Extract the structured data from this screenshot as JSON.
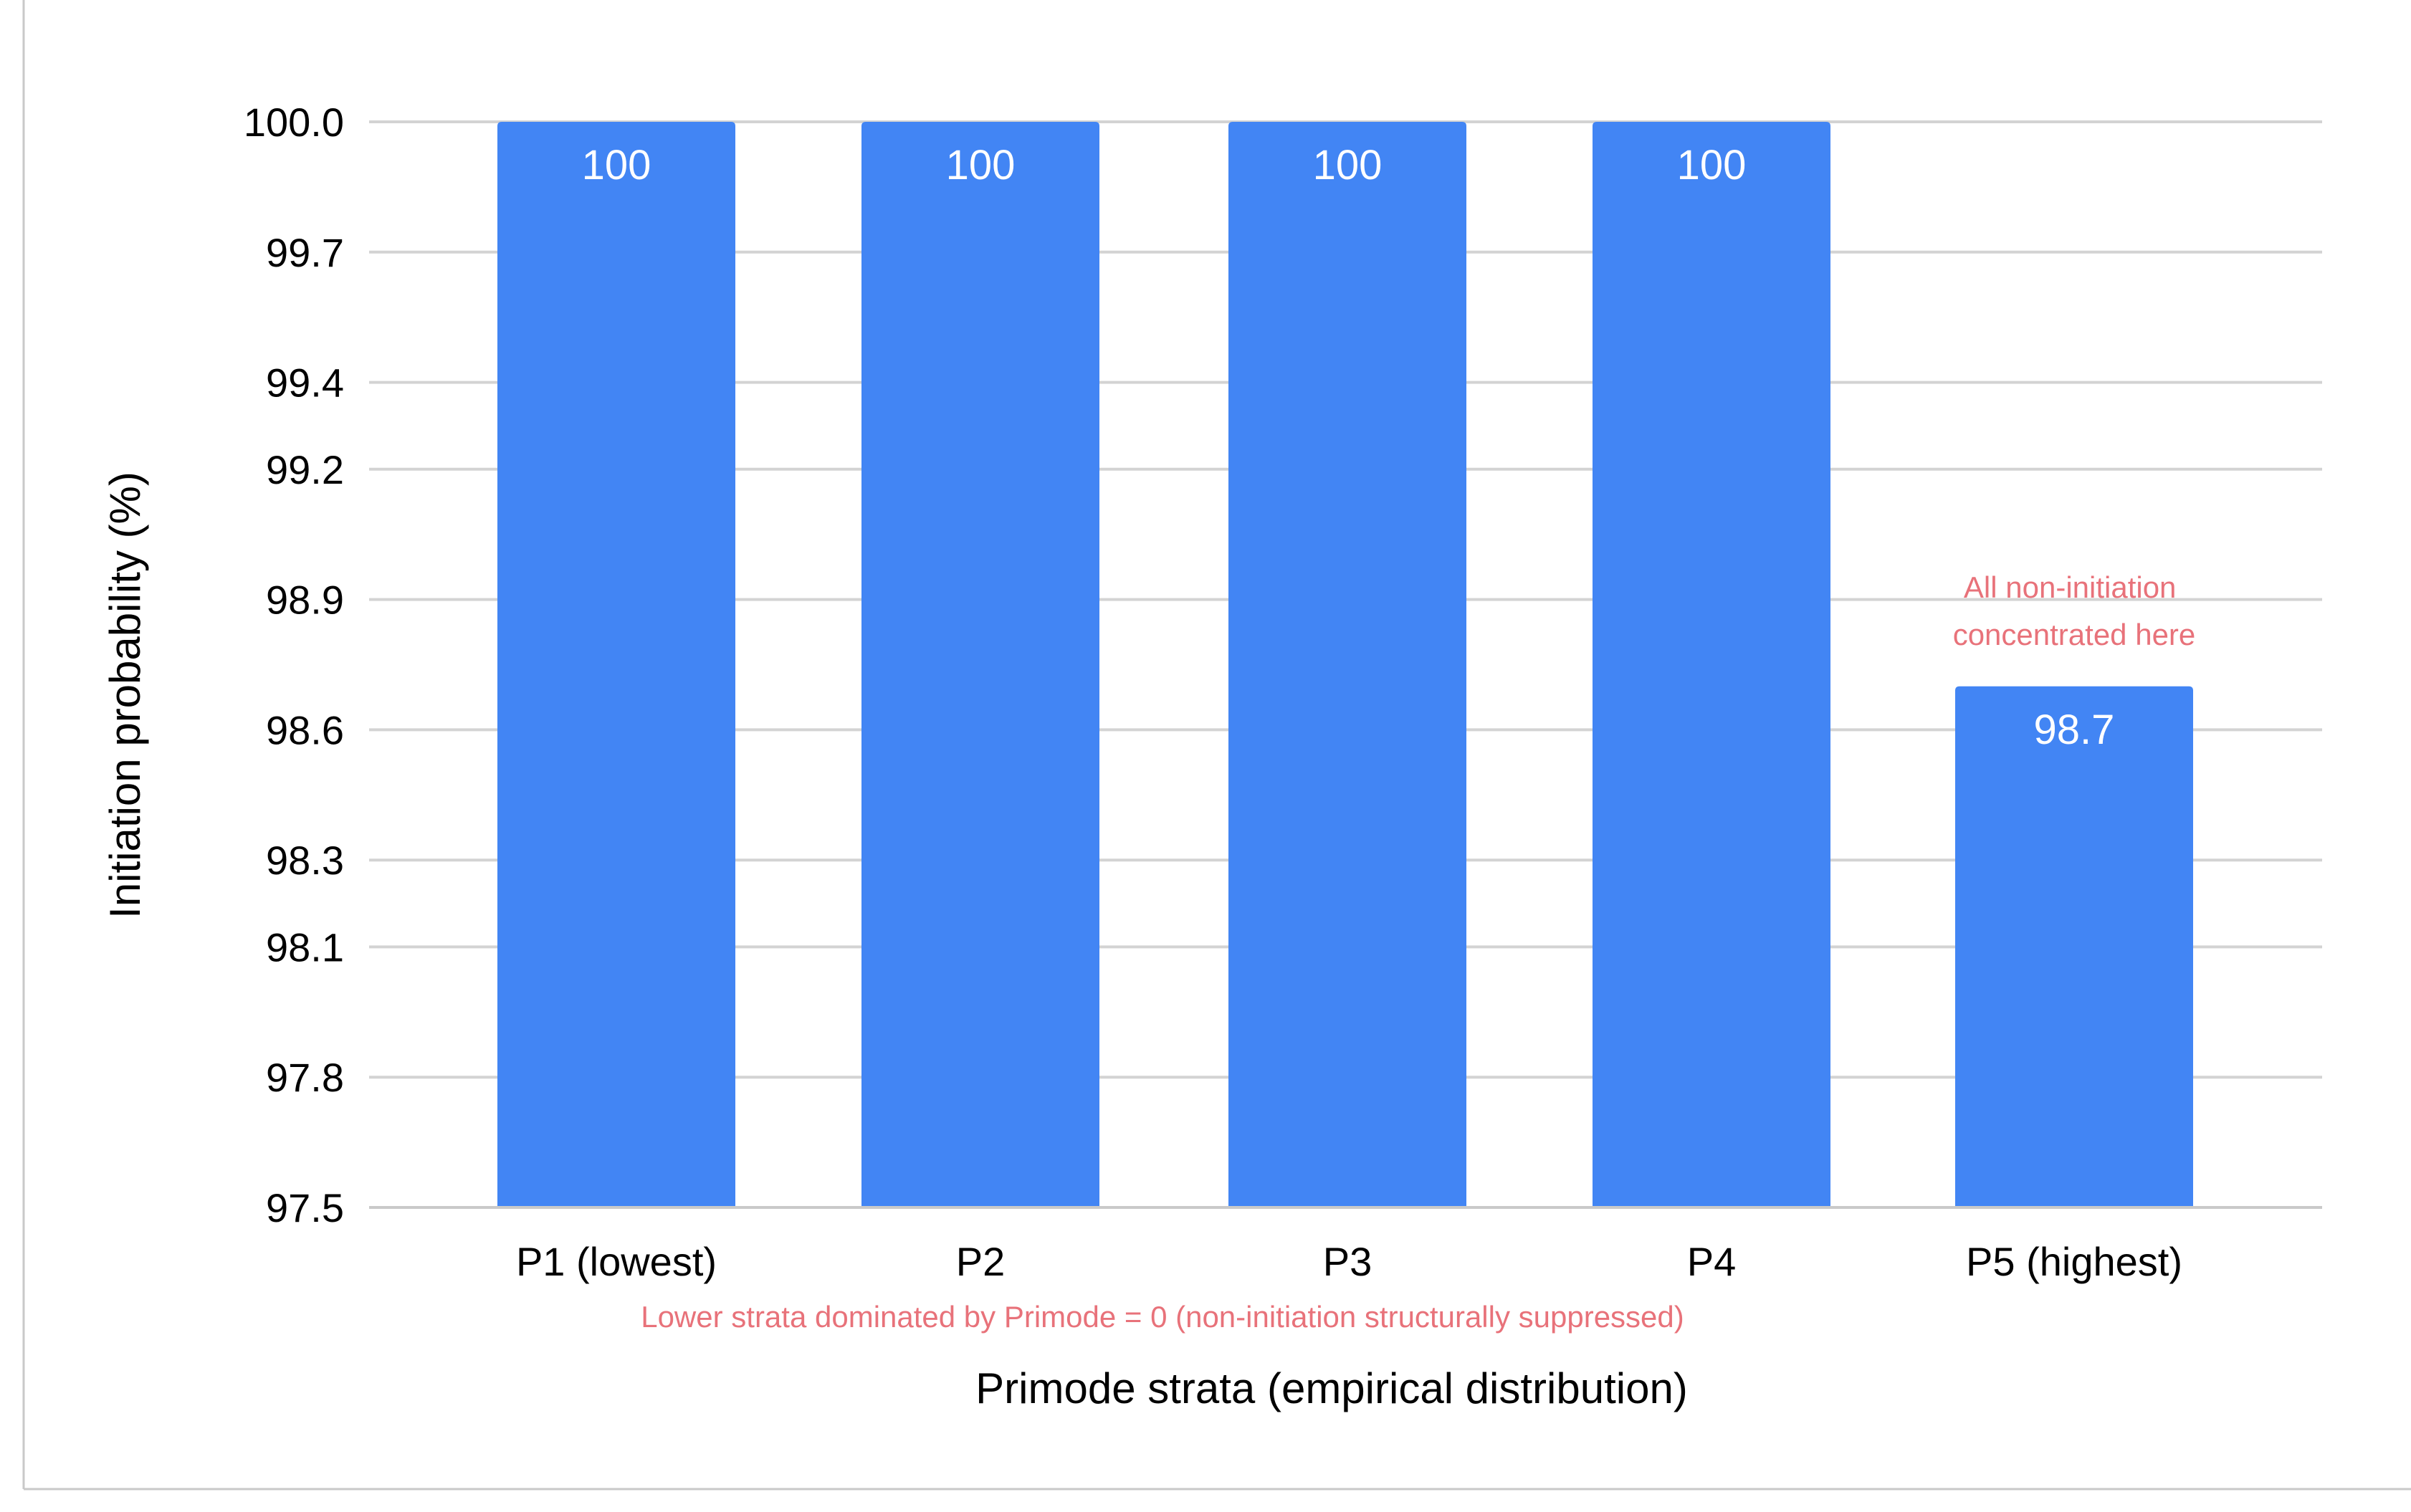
{
  "chart_data": {
    "type": "bar",
    "categories": [
      "P1 (lowest)",
      "P2",
      "P3",
      "P4",
      "P5 (highest)"
    ],
    "values": [
      100,
      100,
      100,
      100,
      98.7
    ],
    "data_labels": [
      "100",
      "100",
      "100",
      "100",
      "98.7"
    ],
    "xlabel": "Primode strata (empirical distribution)",
    "ylabel": "Initiation probability (%)",
    "ylim": [
      97.5,
      100.0
    ],
    "y_ticks": [
      97.5,
      97.8,
      98.1,
      98.3,
      98.6,
      98.9,
      99.2,
      99.4,
      99.7,
      100.0
    ],
    "y_tick_labels": [
      "97.5",
      "97.8",
      "98.1",
      "98.3",
      "98.6",
      "98.9",
      "99.2",
      "99.4",
      "99.7",
      "100.0"
    ],
    "grid": true,
    "legend": "none",
    "bar_color": "#4285F4",
    "annotation_color": "#E8727A",
    "annotations": {
      "bar_note": {
        "category": "P5 (highest)",
        "lines": [
          "All non-initiation",
          "concentrated here"
        ]
      },
      "axis_note": "Lower strata dominated by Primode = 0 (non-initiation structurally suppressed)"
    }
  }
}
